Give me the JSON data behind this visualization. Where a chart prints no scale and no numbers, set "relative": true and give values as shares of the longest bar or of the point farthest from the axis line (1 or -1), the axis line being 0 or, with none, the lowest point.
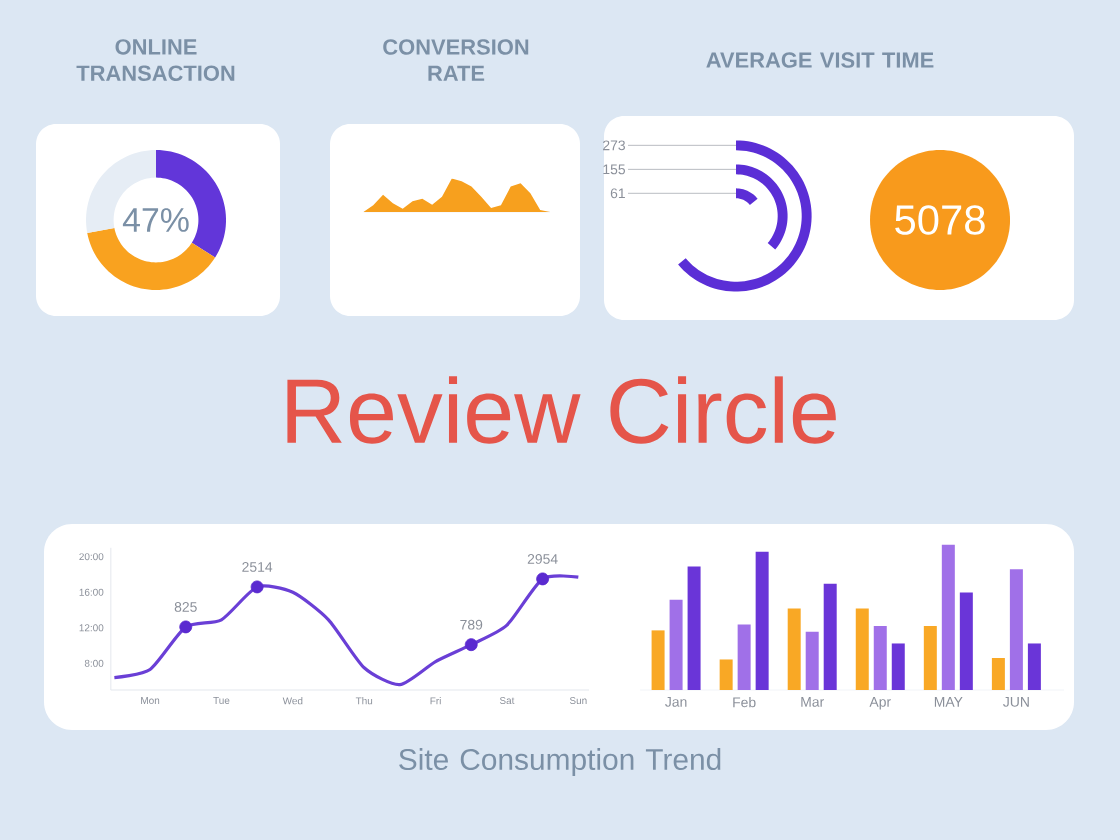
{
  "chart_data": [
    {
      "type": "donut",
      "title": "ONLINE TRANSACTION",
      "categories": [
        null,
        null,
        null
      ],
      "values": [
        34,
        38,
        28
      ],
      "colors": [
        "#6236d9",
        "#f9a21f",
        "#e6edf5"
      ],
      "annotations": [
        "47%"
      ]
    },
    {
      "type": "area",
      "title": "CONVERSION RATE",
      "relative": true,
      "categories": [
        null,
        null,
        null,
        null,
        null,
        null,
        null,
        null,
        null,
        null,
        null,
        null,
        null,
        null,
        null,
        null,
        null,
        null,
        null,
        null
      ],
      "values": [
        0,
        0.2,
        0.52,
        0.26,
        0.1,
        0.32,
        0.4,
        0.22,
        0.46,
        1,
        0.92,
        0.76,
        0.46,
        0.12,
        0.2,
        0.76,
        0.86,
        0.56,
        0.06,
        0
      ],
      "color": "#f7a01e",
      "annotations": [
        "5078"
      ]
    },
    {
      "type": "other",
      "title": "AVERAGE VISIT TIME",
      "categories": [
        null,
        null,
        null
      ],
      "values": [
        273,
        155,
        61
      ],
      "color": "#5b2ed6",
      "data_labels": true
    },
    {
      "type": "other",
      "values": [
        5078
      ],
      "color": "#f89a1c",
      "data_labels": true
    },
    {
      "type": "other",
      "title": "Review Circle"
    },
    {
      "type": "line",
      "title": "Site Consumption Trend",
      "categories": [
        null,
        "Mon",
        null,
        "Tue",
        null,
        "Wed",
        null,
        "Thu",
        null,
        "Fri",
        null,
        "Sat",
        null,
        "Sun"
      ],
      "ylim": [
        5,
        21
      ],
      "yticks": [
        {
          "value": 8,
          "label": "8:00"
        },
        {
          "value": 12,
          "label": "12:00"
        },
        {
          "value": 16,
          "label": "16:00"
        },
        {
          "value": 20,
          "label": "20:00"
        }
      ],
      "series": [
        {
          "type": "line",
          "color": "#6a3fd6",
          "marker": "none",
          "values": [
            6.4,
            7.3,
            12.1,
            12.9,
            16.6,
            16.0,
            12.9,
            7.5,
            5.6,
            8.2,
            10.1,
            12.3,
            17.5,
            17.7
          ]
        },
        {
          "type": "scatter",
          "color": "#5a2ad0",
          "marker": "circle",
          "values": [
            null,
            null,
            12.1,
            null,
            16.6,
            null,
            null,
            null,
            null,
            null,
            10.1,
            null,
            17.5,
            null
          ]
        }
      ],
      "annotations": [
        {
          "text": "825",
          "y": 12.1
        },
        {
          "text": "2514",
          "y": 16.6
        },
        {
          "text": "789",
          "y": 10.1
        },
        {
          "text": "2954",
          "y": 17.5
        }
      ]
    },
    {
      "type": "bar",
      "relative": true,
      "categories": [
        "Jan",
        "Feb",
        "Mar",
        "Apr",
        "MAY",
        "JUN"
      ],
      "series": [
        {
          "color": "#f9a825",
          "values": [
            0.41,
            0.21,
            0.56,
            0.56,
            0.44,
            0.22
          ]
        },
        {
          "color": "#a070e8",
          "values": [
            0.62,
            0.45,
            0.4,
            0.44,
            1,
            0.83
          ]
        },
        {
          "color": "#6a35d8",
          "values": [
            0.85,
            0.95,
            0.73,
            0.32,
            0.67,
            0.32
          ]
        }
      ]
    }
  ]
}
